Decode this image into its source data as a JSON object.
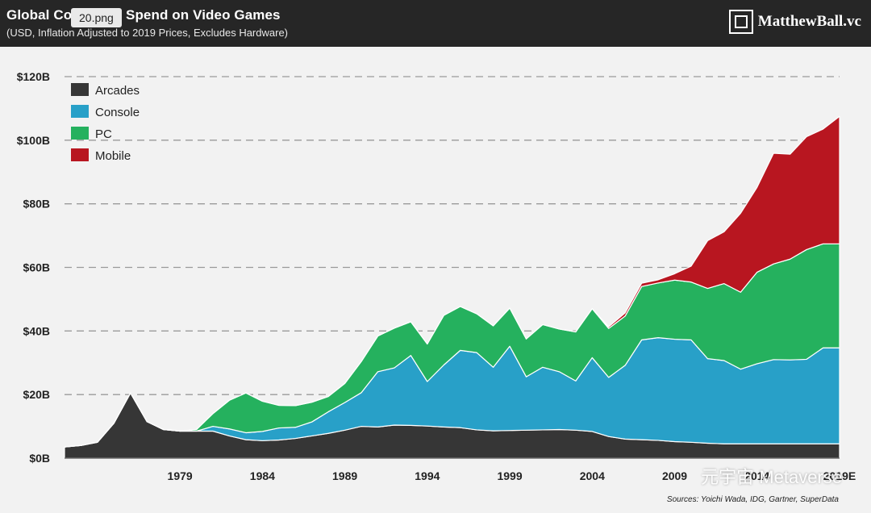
{
  "header": {
    "title": "Global Consumer Spend on Video Games",
    "subtitle": "(USD, Inflation Adjusted to 2019 Prices, Excludes Hardware)",
    "file_tab": "20.png",
    "brand": "MatthewBall.vc",
    "brand_icon": "square-frame-logo-icon"
  },
  "footer": {
    "sources": "Sources: Yoichi Wada, IDG, Gartner, SuperData",
    "watermark": "元宇宙 Metaverse"
  },
  "chart_data": {
    "type": "area",
    "stacked": true,
    "x": [
      1972,
      1973,
      1974,
      1975,
      1976,
      1977,
      1978,
      1979,
      1980,
      1981,
      1982,
      1983,
      1984,
      1985,
      1986,
      1987,
      1988,
      1989,
      1990,
      1991,
      1992,
      1993,
      1994,
      1995,
      1996,
      1997,
      1998,
      1999,
      2000,
      2001,
      2002,
      2003,
      2004,
      2005,
      2006,
      2007,
      2008,
      2009,
      2010,
      2011,
      2012,
      2013,
      2014,
      2015,
      2016,
      2017,
      2018,
      2019
    ],
    "x_tick_labels": [
      "1979",
      "1984",
      "1989",
      "1994",
      "1999",
      "2004",
      "2009",
      "2014",
      "2019E"
    ],
    "x_tick_positions": [
      1979,
      1984,
      1989,
      1994,
      1999,
      2004,
      2009,
      2014,
      2019
    ],
    "xlim": [
      1972,
      2019
    ],
    "ylim": [
      0,
      120
    ],
    "y_ticks": [
      0,
      20,
      40,
      60,
      80,
      100,
      120
    ],
    "y_tick_labels": [
      "$0B",
      "$20B",
      "$40B",
      "$60B",
      "$80B",
      "$100B",
      "$120B"
    ],
    "grid": "horizontal-dashed",
    "legend": "top-left",
    "series": [
      {
        "name": "Arcades",
        "color": "#363636",
        "values": [
          3.5,
          4,
          5,
          11,
          20.5,
          11.5,
          9,
          8.5,
          8.5,
          8.5,
          7,
          5.8,
          5.5,
          5.7,
          6.2,
          7,
          7.8,
          8.8,
          10,
          9.8,
          10.4,
          10.3,
          10.1,
          9.8,
          9.6,
          8.9,
          8.6,
          8.7,
          8.8,
          8.9,
          9,
          8.8,
          8.4,
          6.8,
          6,
          5.8,
          5.6,
          5.2,
          5,
          4.7,
          4.5,
          4.5,
          4.5,
          4.5,
          4.5,
          4.5,
          4.5,
          4.5
        ]
      },
      {
        "name": "Console",
        "color": "#28a0c8",
        "values": [
          0,
          0,
          0,
          0,
          0,
          0,
          0,
          0,
          0,
          1.5,
          2.2,
          2.2,
          2.9,
          3.8,
          3.5,
          4.4,
          6.8,
          8.7,
          10.6,
          17.4,
          18,
          22,
          14,
          19.5,
          24.3,
          24.3,
          20,
          26.5,
          16.8,
          19.7,
          18.2,
          15.5,
          23.2,
          18.6,
          23.2,
          31.4,
          32.3,
          32.2,
          32.2,
          26.6,
          26.2,
          23.5,
          25.2,
          26.5,
          26.4,
          26.6,
          30.2,
          30.2
        ]
      },
      {
        "name": "PC",
        "color": "#25b15e",
        "values": [
          0,
          0,
          0,
          0,
          0,
          0,
          0,
          0,
          0.5,
          4,
          9,
          12.5,
          9.5,
          7.1,
          6.8,
          6.2,
          4.8,
          6,
          9.8,
          11.2,
          12.5,
          10.6,
          11.8,
          15.6,
          13.8,
          12.2,
          13,
          12,
          11.9,
          13.4,
          13.4,
          15.4,
          15.4,
          15.4,
          15.5,
          16.8,
          17.2,
          18.6,
          18.2,
          22.1,
          24.2,
          24.2,
          28.8,
          30.1,
          31.7,
          34.5,
          32.7,
          32.7
        ]
      },
      {
        "name": "Mobile",
        "color": "#b81620",
        "values": [
          0,
          0,
          0,
          0,
          0,
          0,
          0,
          0,
          0,
          0,
          0,
          0,
          0,
          0,
          0,
          0,
          0,
          0,
          0,
          0,
          0,
          0,
          0,
          0,
          0,
          0,
          0,
          0,
          0,
          0,
          0,
          0,
          0,
          0.5,
          1,
          1,
          1,
          2,
          5,
          15,
          16.3,
          24.8,
          26.7,
          34.8,
          33,
          35.5,
          36.1,
          40.1
        ]
      }
    ]
  }
}
